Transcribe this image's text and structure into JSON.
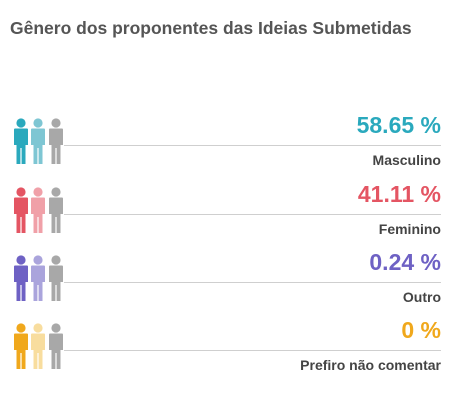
{
  "title": "Gênero dos proponentes das Ideias Submetidas",
  "chart_data": {
    "type": "table",
    "title": "Gênero dos proponentes das Ideias Submetidas",
    "categories": [
      "Masculino",
      "Feminino",
      "Outro",
      "Prefiro não comentar"
    ],
    "values": [
      58.65,
      41.11,
      0.24,
      0
    ],
    "series": [
      {
        "name": "Masculino",
        "value": 58.65,
        "display": "58.65 %",
        "color": "#2aa9bd",
        "light": "#7ec6d3",
        "icon": "people-icon"
      },
      {
        "name": "Feminino",
        "value": 41.11,
        "display": "41.11 %",
        "color": "#e45563",
        "light": "#f0a0a8",
        "icon": "people-icon"
      },
      {
        "name": "Outro",
        "value": 0.24,
        "display": "0.24 %",
        "color": "#6e61c4",
        "light": "#aaa4dc",
        "icon": "people-icon"
      },
      {
        "name": "Prefiro não comentar",
        "value": 0,
        "display": "0 %",
        "color": "#f0a81c",
        "light": "#f8dd9e",
        "icon": "people-icon"
      }
    ],
    "neutral_color": "#a8a8a8"
  }
}
